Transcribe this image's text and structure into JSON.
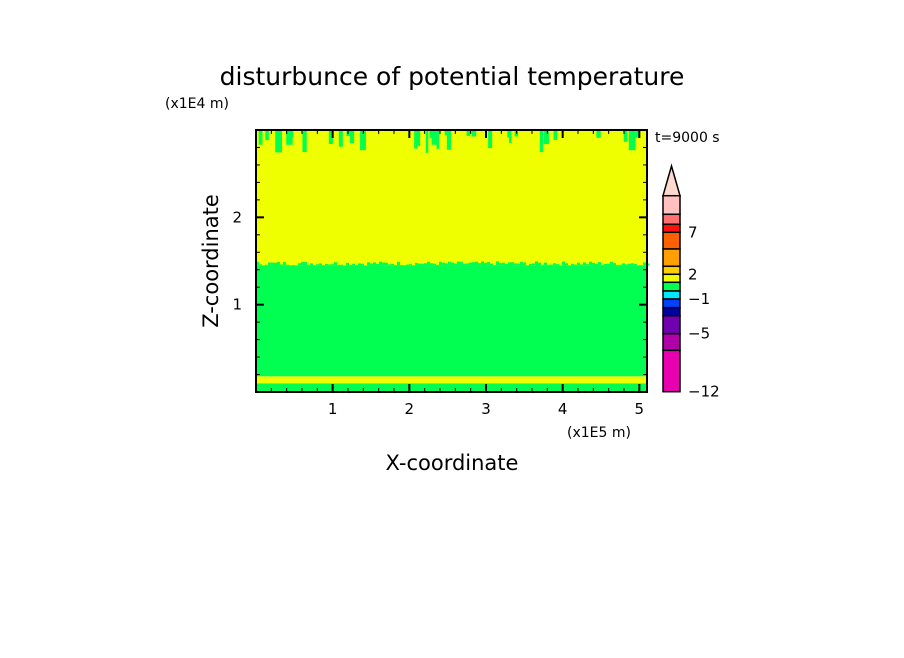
{
  "chart_data": {
    "type": "heatmap",
    "title": "disturbunce of potential temperature",
    "xlabel": "X-coordinate",
    "ylabel": "Z-coordinate",
    "x_unit": "(x1E5 m)",
    "y_unit": "(x1E4 m)",
    "time_label": "t=9000 s",
    "xlim": [
      0,
      5.1
    ],
    "ylim": [
      0,
      3
    ],
    "xticks": [
      "1",
      "2",
      "3",
      "4",
      "5"
    ],
    "yticks": [
      "1",
      "2"
    ],
    "regions": [
      {
        "z_from": 0,
        "z_to": 0.1,
        "color": "#00ff50"
      },
      {
        "z_from": 0.1,
        "z_to": 0.18,
        "color": "#f0ff00"
      },
      {
        "z_from": 0.18,
        "z_to": 1.45,
        "color": "#00ff50"
      },
      {
        "z_from": 1.45,
        "z_to": 3,
        "color": "#f0ff00"
      }
    ],
    "colorbar": {
      "labels": [
        "7",
        "2",
        "-1",
        "-5",
        "-12"
      ],
      "colors": [
        "#ffc0c0",
        "#ff7070",
        "#ff1010",
        "#ff6000",
        "#ffa000",
        "#ffd000",
        "#f0ff00",
        "#00ff50",
        "#00e8ff",
        "#0040ff",
        "#0000a8",
        "#7000b0",
        "#b000a8",
        "#e800b0"
      ],
      "overflow_color": "#ffd8d0"
    }
  }
}
